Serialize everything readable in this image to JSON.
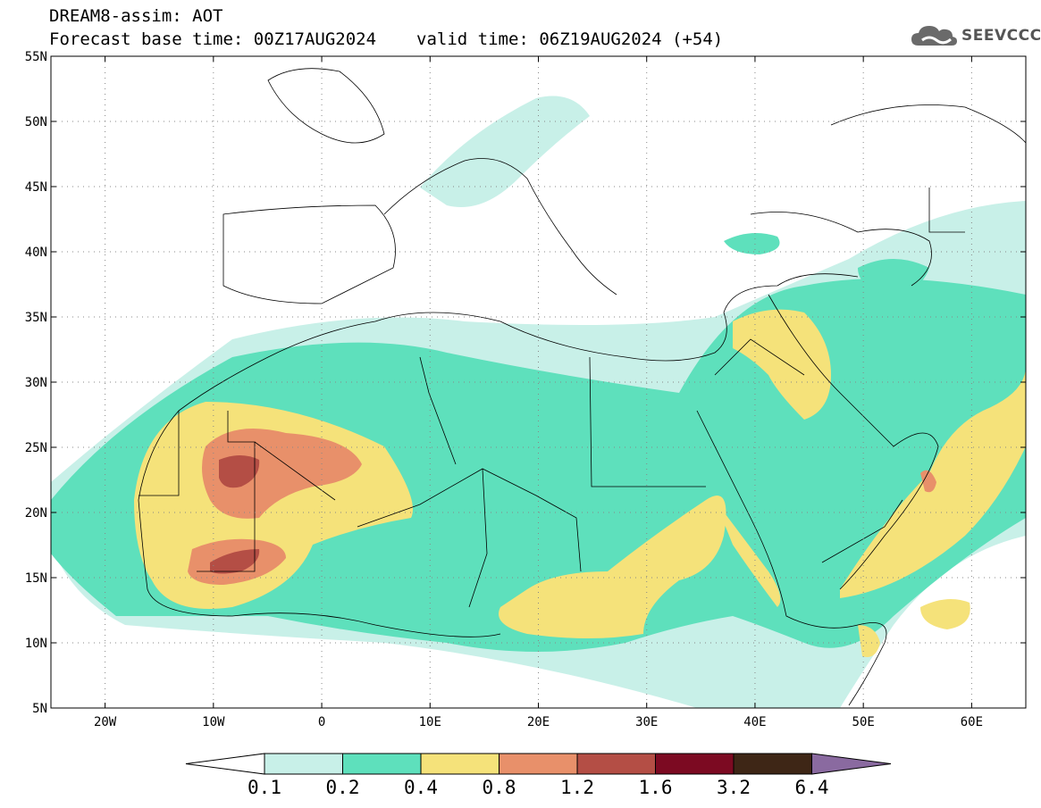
{
  "header": {
    "line1": "DREAM8-assim: AOT",
    "base_time": "Forecast base time: 00Z17AUG2024",
    "valid_time": "valid time: 06Z19AUG2024 (+54)"
  },
  "logo": {
    "text": "SEEVCCC",
    "icon": "cloud-icon"
  },
  "map": {
    "lon_range": [
      -25,
      65
    ],
    "lat_range": [
      5,
      55
    ],
    "lat_labels": [
      "55N",
      "50N",
      "45N",
      "40N",
      "35N",
      "30N",
      "25N",
      "20N",
      "15N",
      "10N",
      "5N"
    ],
    "lon_labels": [
      "20W",
      "10W",
      "0",
      "10E",
      "20E",
      "30E",
      "40E",
      "50E",
      "60E"
    ],
    "gridlines": "dotted"
  },
  "colorbar": {
    "labels": [
      "0.1",
      "0.2",
      "0.4",
      "0.8",
      "1.2",
      "1.6",
      "3.2",
      "6.4"
    ],
    "colors": [
      "#ffffff",
      "#c8f0e8",
      "#5ee0bc",
      "#f5e27a",
      "#e8906a",
      "#b44e45",
      "#7c0a22",
      "#3e2616",
      "#8a6aa0"
    ]
  }
}
